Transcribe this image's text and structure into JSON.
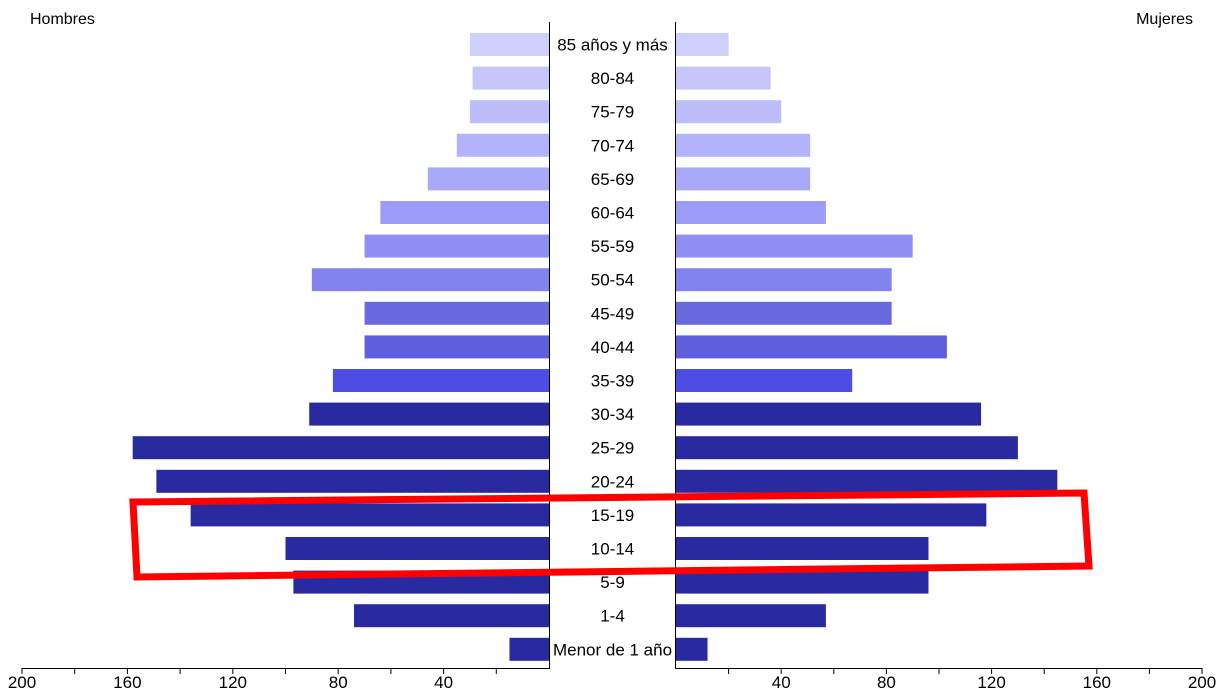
{
  "chart_data": {
    "type": "bar",
    "orientation": "horizontal-population-pyramid",
    "left_label": "Hombres",
    "right_label": "Mujeres",
    "categories": [
      "85 años y más",
      "80-84",
      "75-79",
      "70-74",
      "65-69",
      "60-64",
      "55-59",
      "50-54",
      "45-49",
      "40-44",
      "35-39",
      "30-34",
      "25-29",
      "20-24",
      "15-19",
      "10-14",
      "5-9",
      "1-4",
      "Menor de 1 año"
    ],
    "series": [
      {
        "name": "Hombres",
        "values": [
          30,
          29,
          30,
          35,
          46,
          64,
          70,
          90,
          70,
          70,
          82,
          91,
          158,
          149,
          136,
          100,
          97,
          74,
          15
        ]
      },
      {
        "name": "Mujeres",
        "values": [
          20,
          36,
          40,
          51,
          51,
          57,
          90,
          82,
          82,
          103,
          67,
          116,
          130,
          145,
          118,
          96,
          96,
          57,
          12
        ]
      }
    ],
    "bar_colors": [
      "#cfcffc",
      "#c6c6fb",
      "#bdbdfb",
      "#b3b3fb",
      "#a9a9f9",
      "#9c9cf8",
      "#8f8ff3",
      "#8383ef",
      "#6a6ade",
      "#5f5fde",
      "#4d4de5",
      "#2a2aa0",
      "#2a2aa0",
      "#2a2aa0",
      "#2a2aa0",
      "#2a2aa0",
      "#2a2aa0",
      "#2a2aa0",
      "#2a2aa0"
    ],
    "x_ticks_left": [
      "200",
      "160",
      "120",
      "80",
      "40"
    ],
    "x_ticks_right": [
      "40",
      "80",
      "120",
      "160",
      "200"
    ],
    "xlim": [
      0,
      200
    ],
    "grid": false,
    "highlight": {
      "categories": [
        "15-19",
        "10-14"
      ],
      "color": "#ff0000"
    }
  }
}
